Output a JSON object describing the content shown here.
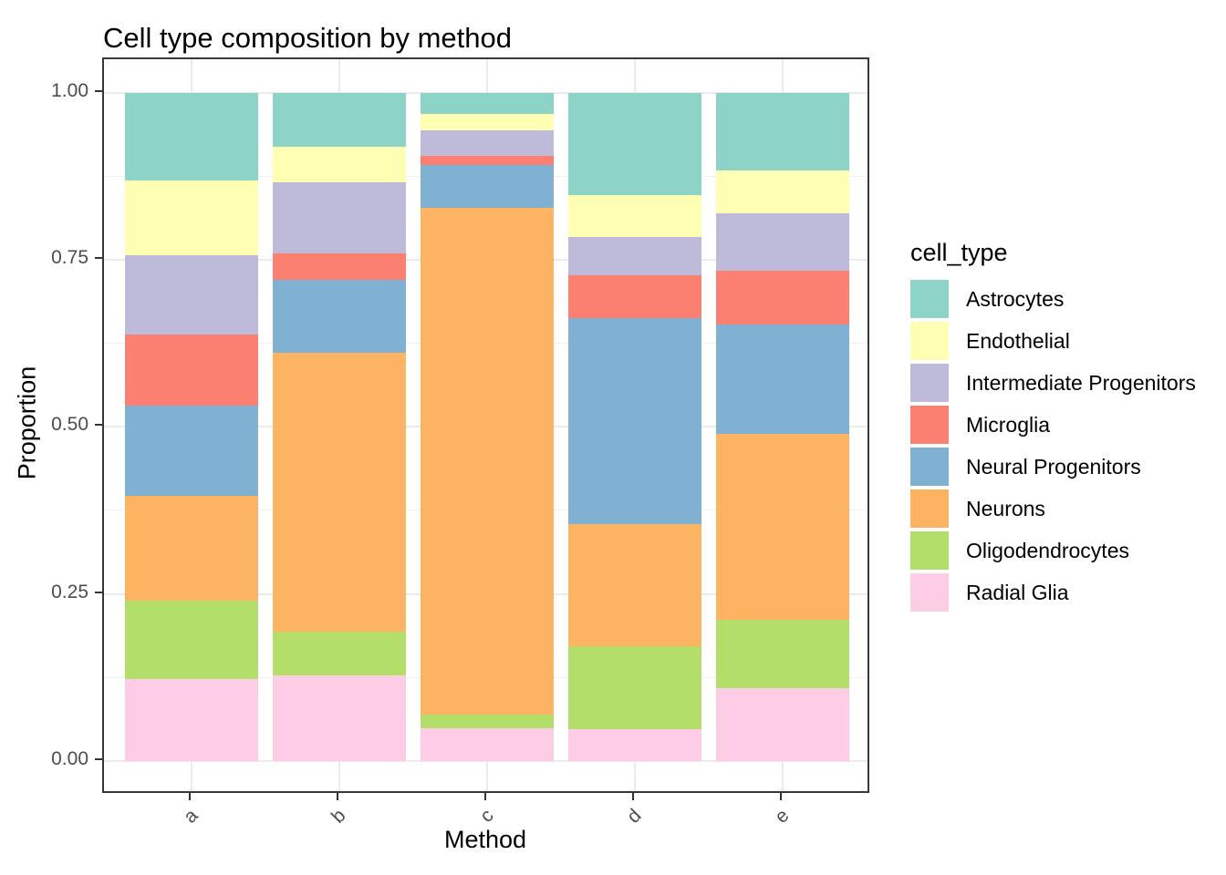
{
  "title": "Cell type composition by method",
  "axes": {
    "x": {
      "label": "Method",
      "categories": [
        "a",
        "b",
        "c",
        "d",
        "e"
      ]
    },
    "y": {
      "label": "Proportion",
      "tick_labels": [
        "1.00",
        "0.75",
        "0.50",
        "0.25",
        "0.00"
      ],
      "tick_values": [
        1.0,
        0.75,
        0.5,
        0.25,
        0.0
      ],
      "minor_tick_values": [
        0.875,
        0.625,
        0.375,
        0.125
      ]
    }
  },
  "legend": {
    "title": "cell_type",
    "entries": [
      {
        "label": "Astrocytes",
        "color": "#8DD3C7"
      },
      {
        "label": "Endothelial",
        "color": "#FFFFB3"
      },
      {
        "label": "Intermediate Progenitors",
        "color": "#BEBADA"
      },
      {
        "label": "Microglia",
        "color": "#FB8072"
      },
      {
        "label": "Neural Progenitors",
        "color": "#80B1D3"
      },
      {
        "label": "Neurons",
        "color": "#FDB462"
      },
      {
        "label": "Oligodendrocytes",
        "color": "#B3DE69"
      },
      {
        "label": "Radial Glia",
        "color": "#FCCDE5"
      }
    ]
  },
  "chart_data": {
    "type": "bar",
    "stacked": true,
    "normalized": true,
    "title": "Cell type composition by method",
    "xlabel": "Method",
    "ylabel": "Proportion",
    "ylim": [
      0,
      1
    ],
    "grid": true,
    "legend_position": "right",
    "categories": [
      "a",
      "b",
      "c",
      "d",
      "e"
    ],
    "series": [
      {
        "name": "Astrocytes",
        "color": "#8DD3C7",
        "values": [
          0.132,
          0.081,
          0.032,
          0.154,
          0.116
        ]
      },
      {
        "name": "Endothelial",
        "color": "#FFFFB3",
        "values": [
          0.111,
          0.053,
          0.025,
          0.062,
          0.064
        ]
      },
      {
        "name": "Intermediate Progenitors",
        "color": "#BEBADA",
        "values": [
          0.119,
          0.106,
          0.038,
          0.058,
          0.086
        ]
      },
      {
        "name": "Microglia",
        "color": "#FB8072",
        "values": [
          0.106,
          0.04,
          0.013,
          0.064,
          0.081
        ]
      },
      {
        "name": "Neural Progenitors",
        "color": "#80B1D3",
        "values": [
          0.135,
          0.109,
          0.064,
          0.307,
          0.163
        ]
      },
      {
        "name": "Neurons",
        "color": "#FDB462",
        "values": [
          0.157,
          0.417,
          0.758,
          0.183,
          0.279
        ]
      },
      {
        "name": "Oligodendrocytes",
        "color": "#B3DE69",
        "values": [
          0.117,
          0.066,
          0.021,
          0.124,
          0.102
        ]
      },
      {
        "name": "Radial Glia",
        "color": "#FCCDE5",
        "values": [
          0.123,
          0.128,
          0.049,
          0.048,
          0.109
        ]
      }
    ]
  }
}
